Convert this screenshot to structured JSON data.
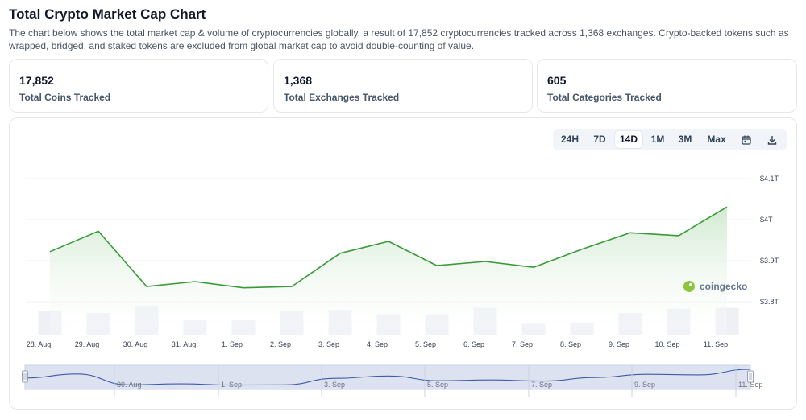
{
  "header": {
    "title": "Total Crypto Market Cap Chart",
    "description": "The chart below shows the total market cap & volume of cryptocurrencies globally, a result of 17,852 cryptocurrencies tracked across 1,368 exchanges. Crypto-backed tokens such as wrapped, bridged, and staked tokens are excluded from global market cap to avoid double-counting of value."
  },
  "stats": [
    {
      "value": "17,852",
      "label": "Total Coins Tracked"
    },
    {
      "value": "1,368",
      "label": "Total Exchanges Tracked"
    },
    {
      "value": "605",
      "label": "Total Categories Tracked"
    }
  ],
  "range_buttons": [
    {
      "label": "24H",
      "active": false
    },
    {
      "label": "7D",
      "active": false
    },
    {
      "label": "14D",
      "active": true
    },
    {
      "label": "1M",
      "active": false
    },
    {
      "label": "3M",
      "active": false
    },
    {
      "label": "Max",
      "active": false
    }
  ],
  "icons": {
    "calendar": "calendar-icon",
    "download": "download-icon",
    "watermark_logo": "coingecko-logo-icon"
  },
  "watermark": "coingecko",
  "colors": {
    "line": "#3a9a3a",
    "area_top": "#d2ecd2",
    "volume_bar": "#eef0f6",
    "navigator_fill": "#dde2f0",
    "navigator_line": "#3e5ba8"
  },
  "chart_data": {
    "type": "area",
    "title": "",
    "xlabel": "",
    "ylabel": "",
    "y_ticks": [
      "$3.8T",
      "$3.9T",
      "$4T",
      "$4.1T"
    ],
    "ylim": [
      3.77,
      4.12
    ],
    "grid": true,
    "x_tick_labels": [
      "28. Aug",
      "29. Aug",
      "30. Aug",
      "31. Aug",
      "1. Sep",
      "2. Sep",
      "3. Sep",
      "4. Sep",
      "5. Sep",
      "6. Sep",
      "7. Sep",
      "8. Sep",
      "9. Sep",
      "10. Sep",
      "11. Sep"
    ],
    "series": [
      {
        "values": [
          3.922,
          3.972,
          3.837,
          3.849,
          3.834,
          3.837,
          3.918,
          3.947,
          3.888,
          3.898,
          3.884,
          3.928,
          3.968,
          3.961,
          4.031
        ]
      }
    ],
    "volume_relative": [
      0.66,
      0.6,
      0.8,
      0.4,
      0.4,
      0.66,
      0.68,
      0.56,
      0.56,
      0.74,
      0.3,
      0.34,
      0.6,
      0.72,
      0.74
    ],
    "navigator": {
      "tick_labels": [
        "30. Aug",
        "1. Sep",
        "3. Sep",
        "5. Sep",
        "7. Sep",
        "9. Sep",
        "11. Sep"
      ]
    }
  }
}
